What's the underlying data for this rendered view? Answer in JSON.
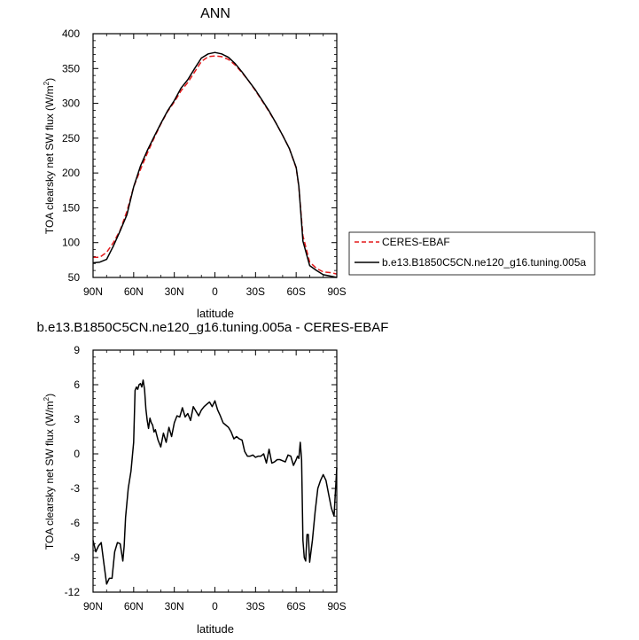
{
  "chart_data": [
    {
      "type": "line",
      "title": "ANN",
      "xlabel": "latitude",
      "ylabel": "TOA clearsky net SW flux (W/m",
      "ylabel_sup": "2",
      "ylabel_end": ")",
      "xlim": [
        90,
        -90
      ],
      "ylim": [
        50,
        400
      ],
      "x_ticks": [
        90,
        60,
        30,
        0,
        -30,
        -60,
        -90
      ],
      "x_tick_labels": [
        "90N",
        "60N",
        "30N",
        "0",
        "30S",
        "60S",
        "90S"
      ],
      "y_ticks": [
        50,
        100,
        150,
        200,
        250,
        300,
        350,
        400
      ],
      "y_tick_labels": [
        "50",
        "100",
        "150",
        "200",
        "250",
        "300",
        "350",
        "400"
      ],
      "legend_position": "right",
      "series": [
        {
          "name": "CERES-EBAF",
          "color": "#e41a1c",
          "dash": "dashed",
          "x": [
            90,
            85,
            80,
            75,
            70,
            65,
            60,
            55,
            50,
            45,
            40,
            35,
            30,
            25,
            20,
            15,
            10,
            5,
            0,
            -5,
            -10,
            -15,
            -20,
            -25,
            -30,
            -35,
            -40,
            -45,
            -50,
            -55,
            -60,
            -62,
            -65,
            -70,
            -75,
            -80,
            -85,
            -90
          ],
          "y": [
            79,
            79,
            86,
            100,
            118,
            145,
            180,
            205,
            228,
            250,
            270,
            288,
            302,
            318,
            330,
            345,
            360,
            367,
            368,
            367,
            363,
            355,
            344,
            332,
            318,
            303,
            288,
            272,
            254,
            235,
            207,
            180,
            110,
            72,
            63,
            58,
            57,
            55
          ]
        },
        {
          "name": "b.e13.B1850C5CN.ne120_g16.tuning.005a",
          "color": "#000000",
          "dash": "solid",
          "x": [
            90,
            85,
            80,
            75,
            70,
            65,
            60,
            55,
            50,
            45,
            40,
            35,
            30,
            25,
            20,
            15,
            10,
            5,
            0,
            -5,
            -10,
            -15,
            -20,
            -25,
            -30,
            -35,
            -40,
            -45,
            -50,
            -55,
            -60,
            -62,
            -65,
            -70,
            -75,
            -80,
            -85,
            -90
          ],
          "y": [
            71,
            72,
            76,
            95,
            117,
            140,
            180,
            210,
            232,
            252,
            271,
            289,
            304,
            322,
            334,
            350,
            365,
            371,
            373,
            371,
            366,
            357,
            345,
            332,
            319,
            304,
            289,
            272,
            254,
            235,
            208,
            181,
            102,
            67,
            60,
            54,
            52,
            50
          ]
        }
      ]
    },
    {
      "type": "line",
      "title": "b.e13.B1850C5CN.ne120_g16.tuning.005a - CERES-EBAF",
      "xlabel": "latitude",
      "ylabel": "TOA clearsky net SW flux (W/m",
      "ylabel_sup": "2",
      "ylabel_end": ")",
      "xlim": [
        90,
        -90
      ],
      "ylim": [
        -12,
        9
      ],
      "x_ticks": [
        90,
        60,
        30,
        0,
        -30,
        -60,
        -90
      ],
      "x_tick_labels": [
        "90N",
        "60N",
        "30N",
        "0",
        "30S",
        "60S",
        "90S"
      ],
      "y_ticks": [
        -12,
        -9,
        -6,
        -3,
        0,
        3,
        6,
        9
      ],
      "y_tick_labels": [
        "-12",
        "-9",
        "-6",
        "-3",
        "0",
        "3",
        "6",
        "9"
      ],
      "series": [
        {
          "name": "",
          "color": "#000000",
          "dash": "solid",
          "x": [
            90,
            88,
            86,
            84,
            82,
            80,
            78,
            76,
            74,
            72,
            70,
            68,
            67,
            66,
            64,
            62,
            60,
            59,
            58,
            57,
            56,
            55,
            54,
            53,
            52,
            51,
            50,
            49,
            48,
            47,
            46,
            45,
            44,
            42,
            40,
            38,
            36,
            34,
            32,
            30,
            28,
            26,
            24,
            22,
            20,
            18,
            16,
            14,
            12,
            10,
            8,
            6,
            4,
            2,
            0,
            -2,
            -4,
            -6,
            -8,
            -10,
            -12,
            -14,
            -16,
            -18,
            -20,
            -22,
            -24,
            -26,
            -28,
            -30,
            -32,
            -34,
            -36,
            -38,
            -40,
            -42,
            -44,
            -46,
            -48,
            -50,
            -52,
            -54,
            -56,
            -58,
            -60,
            -61,
            -62,
            -63,
            -64,
            -65,
            -66,
            -67,
            -68,
            -69,
            -70,
            -72,
            -74,
            -76,
            -78,
            -80,
            -82,
            -84,
            -86,
            -88,
            -90
          ],
          "y": [
            -7.5,
            -8.5,
            -8.0,
            -7.7,
            -9.5,
            -11.3,
            -10.8,
            -10.8,
            -8.5,
            -7.7,
            -7.8,
            -9.3,
            -8.0,
            -5.5,
            -3.0,
            -1.5,
            1.0,
            5.5,
            5.8,
            5.6,
            6.0,
            6.1,
            5.8,
            6.4,
            5.6,
            3.9,
            2.9,
            2.2,
            3.1,
            2.7,
            2.5,
            1.9,
            2.1,
            1.2,
            0.6,
            1.8,
            1.0,
            2.3,
            1.5,
            2.7,
            3.3,
            3.2,
            4.0,
            3.2,
            3.5,
            2.9,
            4.1,
            3.7,
            3.3,
            3.8,
            4.1,
            4.3,
            4.5,
            4.1,
            4.6,
            3.8,
            3.3,
            2.7,
            2.5,
            2.3,
            1.9,
            1.3,
            1.5,
            1.3,
            1.2,
            0.2,
            -0.2,
            -0.2,
            -0.1,
            -0.3,
            -0.2,
            -0.2,
            0.0,
            -0.8,
            0.4,
            -0.8,
            -0.7,
            -0.5,
            -0.5,
            -0.6,
            -0.7,
            -0.1,
            -0.2,
            -1.0,
            -0.5,
            -0.2,
            -0.4,
            1.0,
            -0.5,
            -7.5,
            -9.0,
            -9.3,
            -7.0,
            -7.0,
            -9.4,
            -7.5,
            -5.0,
            -3.0,
            -2.3,
            -1.8,
            -2.3,
            -3.5,
            -4.7,
            -5.4,
            -1.2
          ]
        }
      ]
    }
  ]
}
